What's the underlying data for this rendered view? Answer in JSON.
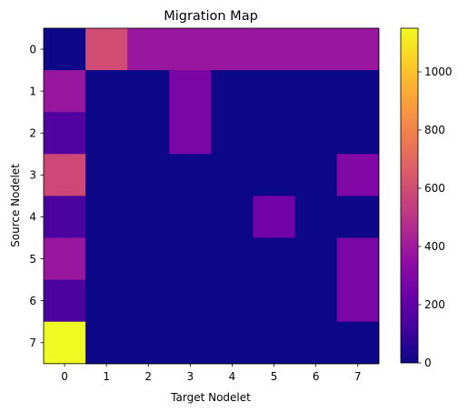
{
  "chart_data": {
    "type": "heatmap",
    "title": "Migration Map",
    "xlabel": "Target Nodelet",
    "ylabel": "Source Nodelet",
    "x_categories": [
      "0",
      "1",
      "2",
      "3",
      "4",
      "5",
      "6",
      "7"
    ],
    "y_categories": [
      "0",
      "1",
      "2",
      "3",
      "4",
      "5",
      "6",
      "7"
    ],
    "values": [
      [
        0,
        600,
        380,
        380,
        380,
        380,
        380,
        380
      ],
      [
        380,
        0,
        0,
        280,
        0,
        0,
        0,
        0
      ],
      [
        160,
        0,
        0,
        280,
        0,
        0,
        0,
        0
      ],
      [
        580,
        0,
        0,
        0,
        0,
        0,
        0,
        300
      ],
      [
        140,
        0,
        0,
        0,
        0,
        260,
        0,
        0
      ],
      [
        380,
        0,
        0,
        0,
        0,
        0,
        0,
        280
      ],
      [
        150,
        0,
        0,
        0,
        0,
        0,
        0,
        280
      ],
      [
        1150,
        0,
        0,
        0,
        0,
        0,
        0,
        0
      ]
    ],
    "colormap": "plasma",
    "vmin": 0,
    "vmax": 1150,
    "colorbar_ticks": [
      0,
      200,
      400,
      600,
      800,
      1000
    ],
    "colorbar_tick_labels": [
      "0",
      "200",
      "400",
      "600",
      "800",
      "1000"
    ],
    "grid": false,
    "legend": "colorbar-right"
  }
}
